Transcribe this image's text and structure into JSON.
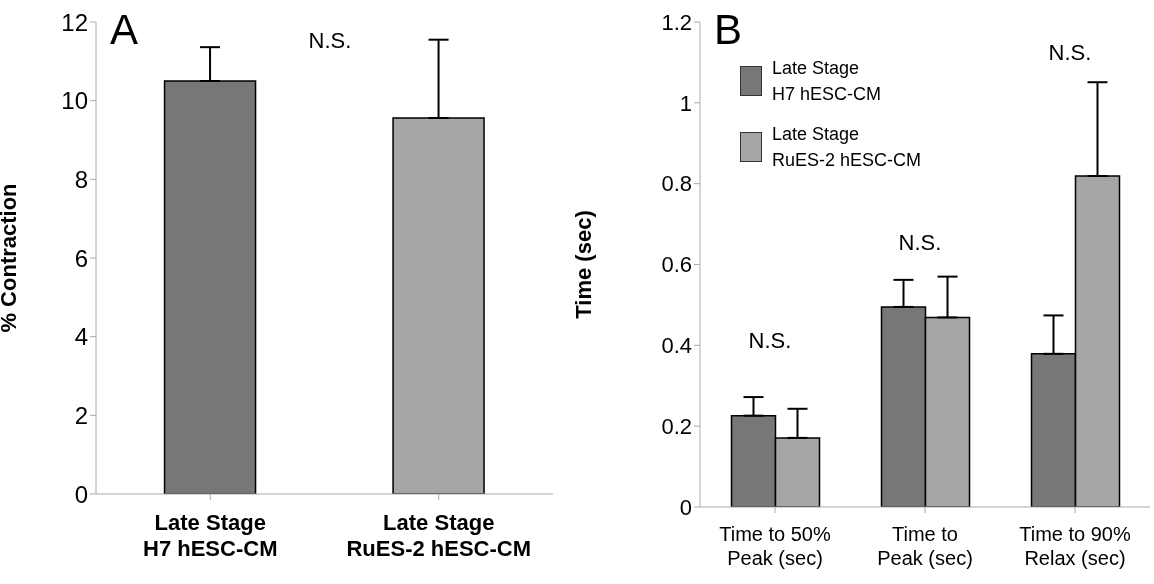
{
  "chart_data": [
    {
      "type": "bar",
      "title": "A",
      "ylabel": "% Contraction",
      "categories": [
        "Late Stage\nH7 hESC-CM",
        "Late Stage\nRuES-2 hESC-CM"
      ],
      "values": [
        10.5,
        9.56
      ],
      "colors": [
        "#777777",
        "#a6a6a6"
      ],
      "errors": [
        [
          10.5,
          11.36
        ],
        [
          9.56,
          11.55
        ]
      ],
      "ylim": [
        0,
        12
      ],
      "yticks": [
        0,
        2,
        4,
        6,
        8,
        10,
        12
      ],
      "annotations": [
        "N.S."
      ]
    },
    {
      "type": "bar",
      "title": "B",
      "ylabel": "Time (sec)",
      "categories": [
        "Time to 50%\nPeak (sec)",
        "Time to\nPeak (sec)",
        "Time to 90%\nRelax (sec)"
      ],
      "series": [
        {
          "name": "Late Stage\nH7 hESC-CM",
          "color": "#777777",
          "values": [
            0.226,
            0.495,
            0.379
          ],
          "errors": [
            [
              0.226,
              0.272
            ],
            [
              0.495,
              0.562
            ],
            [
              0.379,
              0.474
            ]
          ]
        },
        {
          "name": "Late Stage\nRuES-2 hESC-CM",
          "color": "#a6a6a6",
          "values": [
            0.171,
            0.469,
            0.819
          ],
          "errors": [
            [
              0.171,
              0.243
            ],
            [
              0.469,
              0.57
            ],
            [
              0.819,
              1.051
            ]
          ]
        }
      ],
      "ylim": [
        0,
        1.2
      ],
      "yticks": [
        0,
        0.2,
        0.4,
        0.6,
        0.8,
        1,
        1.2
      ],
      "legend": "top left",
      "annotations": [
        "N.S.",
        "N.S.",
        "N.S."
      ]
    }
  ]
}
